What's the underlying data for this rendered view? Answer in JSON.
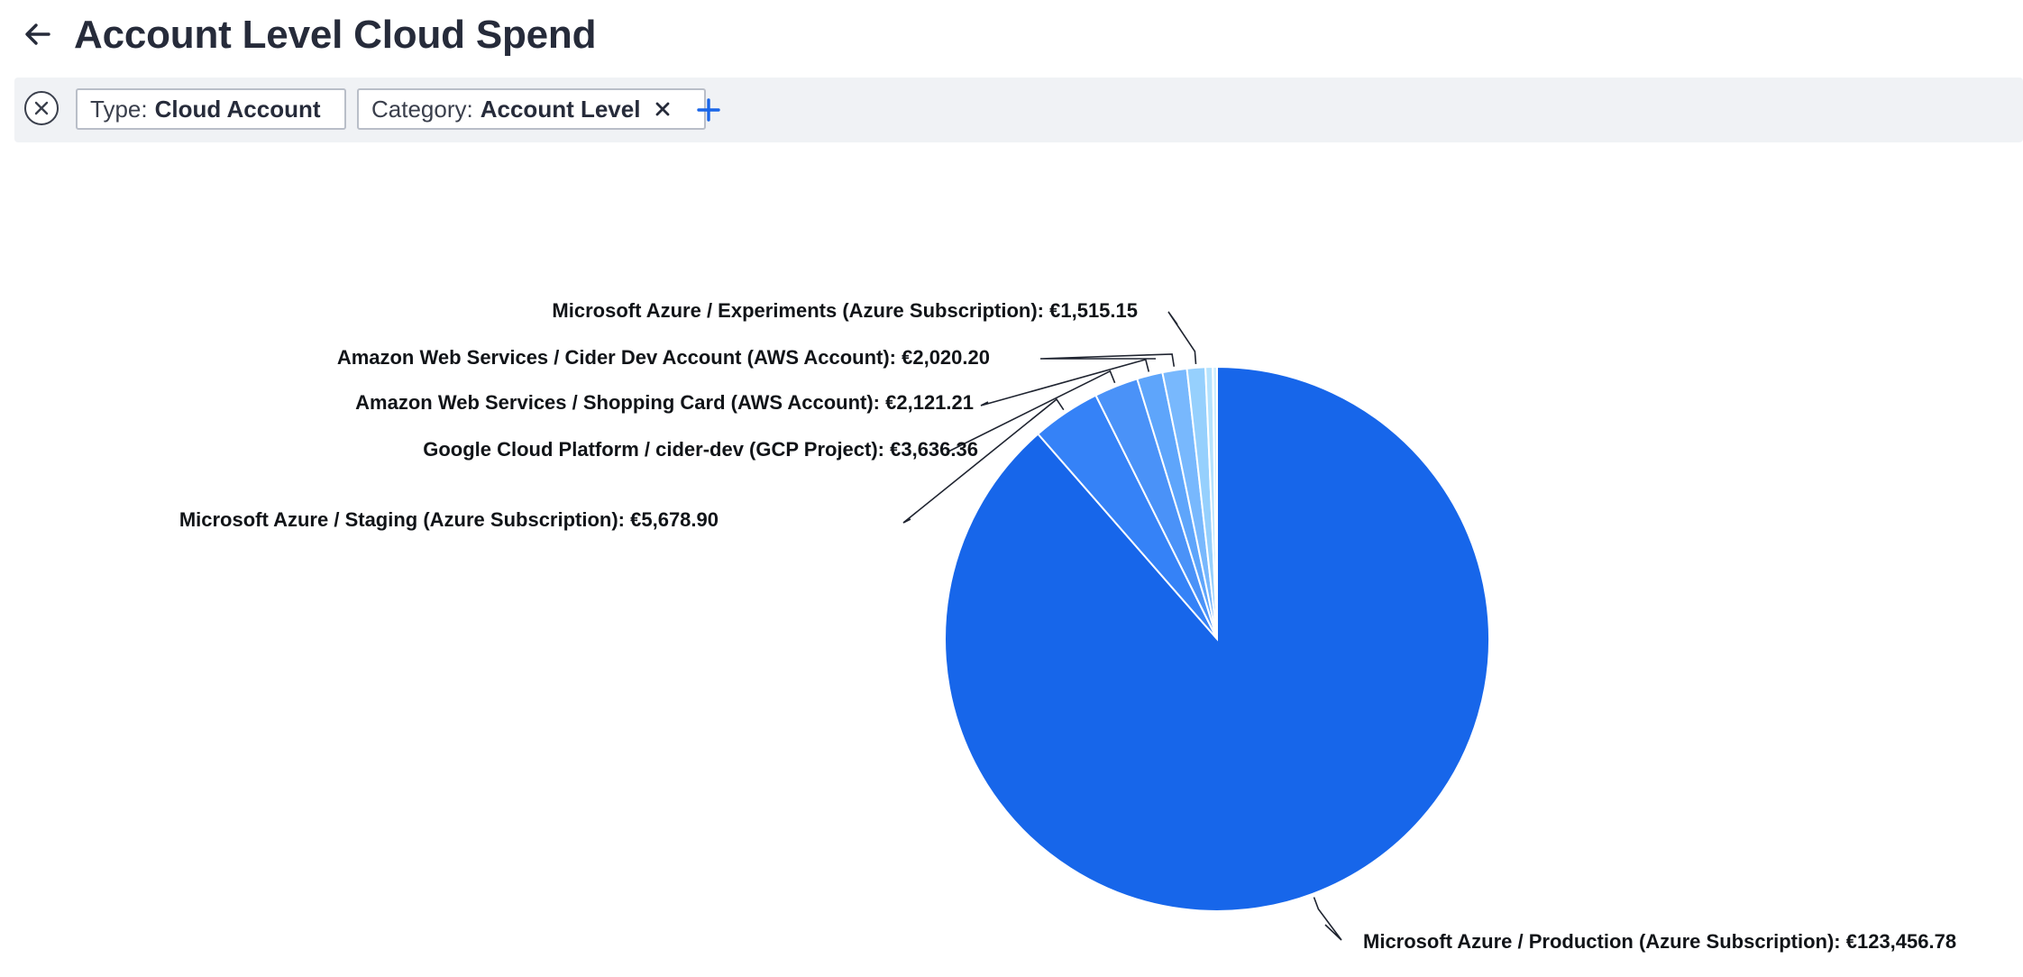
{
  "header": {
    "title": "Account Level Cloud Spend",
    "back_icon": "arrow-left-icon"
  },
  "filters": {
    "clear_icon": "close-circle-icon",
    "chips": [
      {
        "key": "Type:",
        "value": "Cloud Account",
        "removable": false
      },
      {
        "key": "Category:",
        "value": "Account Level",
        "removable": true,
        "remove_icon": "close-icon"
      }
    ],
    "add_icon": "plus-icon",
    "add_color": "#1a66e8"
  },
  "chart_data": {
    "type": "pie",
    "title": "",
    "slices": [
      {
        "label": "Microsoft Azure / Production (Azure Subscription): €123,456.78",
        "value": 123456.78,
        "color": "#1766ea"
      },
      {
        "label": "Microsoft Azure / Staging (Azure Subscription): €5,678.90",
        "value": 5678.9,
        "color": "#3582f7"
      },
      {
        "label": "Google Cloud Platform / cider-dev (GCP Project): €3,636.36",
        "value": 3636.36,
        "color": "#4a92f8"
      },
      {
        "label": "Amazon Web Services / Shopping Card (AWS Account): €2,121.21",
        "value": 2121.21,
        "color": "#5ea5fb"
      },
      {
        "label": "Amazon Web Services / Cider Dev Account (AWS Account): €2,020.20",
        "value": 2020.2,
        "color": "#78b8fd"
      },
      {
        "label": "Microsoft Azure / Experiments (Azure Subscription): €1,515.15",
        "value": 1515.15,
        "color": "#96d0fd"
      },
      {
        "label": "",
        "value": 600,
        "color": "#b5e3fe"
      },
      {
        "label": "",
        "value": 350,
        "color": "#cdeeff"
      }
    ]
  }
}
